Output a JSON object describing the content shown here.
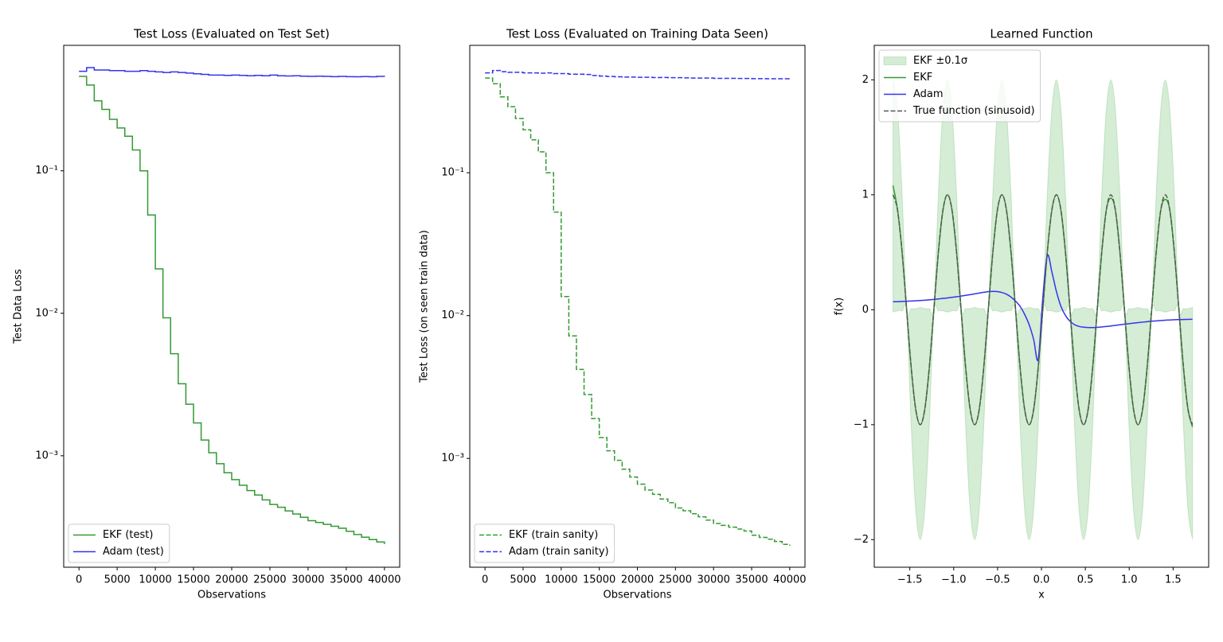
{
  "chart_data": [
    {
      "type": "line",
      "title": "Test Loss (Evaluated on Test Set)",
      "xlabel": "Observations",
      "ylabel": "Test Data Loss",
      "yscale": "log",
      "drawstyle": "steps-post",
      "legend": "lower left",
      "xlim": [
        -2000,
        42000
      ],
      "ylim": [
        0.000165,
        0.76
      ],
      "xticks": [
        0,
        5000,
        10000,
        15000,
        20000,
        25000,
        30000,
        35000,
        40000
      ],
      "yticks": [
        {
          "value": 0.1,
          "label": "10⁻¹"
        },
        {
          "value": 0.01,
          "label": "10⁻²"
        },
        {
          "value": 0.001,
          "label": "10⁻³"
        }
      ],
      "x": [
        0,
        1000,
        2000,
        3000,
        4000,
        5000,
        6000,
        7000,
        8000,
        9000,
        10000,
        11000,
        12000,
        13000,
        14000,
        15000,
        16000,
        17000,
        18000,
        19000,
        20000,
        21000,
        22000,
        23000,
        24000,
        25000,
        26000,
        27000,
        28000,
        29000,
        30000,
        31000,
        32000,
        33000,
        34000,
        35000,
        36000,
        37000,
        38000,
        39000,
        40000
      ],
      "series": [
        {
          "name": "EKF (test)",
          "color": "#339933",
          "style": "solid",
          "values": [
            0.46,
            0.4,
            0.31,
            0.27,
            0.23,
            0.2,
            0.175,
            0.14,
            0.1,
            0.049,
            0.0205,
            0.0093,
            0.0052,
            0.0032,
            0.0023,
            0.0017,
            0.00129,
            0.00105,
            0.00088,
            0.00076,
            0.00068,
            0.00062,
            0.00057,
            0.00053,
            0.00049,
            0.000455,
            0.000435,
            0.00041,
            0.00039,
            0.00037,
            0.00035,
            0.00034,
            0.00033,
            0.00032,
            0.00031,
            0.000295,
            0.00028,
            0.000268,
            0.000258,
            0.000248,
            0.00024
          ]
        },
        {
          "name": "Adam (test)",
          "color": "#3333ee",
          "style": "solid",
          "values": [
            0.5,
            0.53,
            0.51,
            0.51,
            0.505,
            0.505,
            0.5,
            0.5,
            0.505,
            0.5,
            0.495,
            0.49,
            0.495,
            0.49,
            0.485,
            0.48,
            0.475,
            0.47,
            0.47,
            0.468,
            0.47,
            0.468,
            0.465,
            0.468,
            0.465,
            0.47,
            0.465,
            0.463,
            0.465,
            0.462,
            0.46,
            0.462,
            0.46,
            0.458,
            0.46,
            0.458,
            0.457,
            0.459,
            0.457,
            0.46,
            0.457
          ]
        }
      ]
    },
    {
      "type": "line",
      "title": "Test Loss (Evaluated on Training Data Seen)",
      "xlabel": "Observations",
      "ylabel": "Test Loss (on seen train data)",
      "yscale": "log",
      "drawstyle": "steps-post",
      "legend": "lower left",
      "xlim": [
        -2000,
        42000
      ],
      "ylim": [
        0.000173,
        0.78
      ],
      "xticks": [
        0,
        5000,
        10000,
        15000,
        20000,
        25000,
        30000,
        35000,
        40000
      ],
      "yticks": [
        {
          "value": 0.1,
          "label": "10⁻¹"
        },
        {
          "value": 0.01,
          "label": "10⁻²"
        },
        {
          "value": 0.001,
          "label": "10⁻³"
        }
      ],
      "x": [
        0,
        1000,
        2000,
        3000,
        4000,
        5000,
        6000,
        7000,
        8000,
        9000,
        10000,
        11000,
        12000,
        13000,
        14000,
        15000,
        16000,
        17000,
        18000,
        19000,
        20000,
        21000,
        22000,
        23000,
        24000,
        25000,
        26000,
        27000,
        28000,
        29000,
        30000,
        31000,
        32000,
        33000,
        34000,
        35000,
        36000,
        37000,
        38000,
        39000,
        40000
      ],
      "series": [
        {
          "name": "EKF (train sanity)",
          "color": "#339933",
          "style": "dashed",
          "values": [
            0.46,
            0.42,
            0.34,
            0.29,
            0.24,
            0.2,
            0.17,
            0.14,
            0.1,
            0.053,
            0.0136,
            0.0072,
            0.0042,
            0.0028,
            0.0019,
            0.0014,
            0.00113,
            0.00097,
            0.00084,
            0.00074,
            0.00066,
            0.0006,
            0.00056,
            0.00052,
            0.00049,
            0.00045,
            0.00043,
            0.00041,
            0.00039,
            0.00037,
            0.00035,
            0.00034,
            0.00033,
            0.00032,
            0.00031,
            0.00029,
            0.00028,
            0.000272,
            0.000262,
            0.00025,
            0.000245
          ]
        },
        {
          "name": "Adam (train sanity)",
          "color": "#3333ee",
          "style": "dashed",
          "values": [
            0.5,
            0.52,
            0.51,
            0.505,
            0.505,
            0.5,
            0.5,
            0.498,
            0.5,
            0.495,
            0.495,
            0.49,
            0.49,
            0.488,
            0.48,
            0.475,
            0.472,
            0.47,
            0.468,
            0.468,
            0.466,
            0.466,
            0.464,
            0.465,
            0.463,
            0.463,
            0.462,
            0.46,
            0.46,
            0.46,
            0.458,
            0.458,
            0.458,
            0.457,
            0.457,
            0.456,
            0.456,
            0.455,
            0.455,
            0.455,
            0.455
          ]
        }
      ]
    },
    {
      "type": "line",
      "title": "Learned Function",
      "xlabel": "x",
      "ylabel": "f(x)",
      "yscale": "linear",
      "drawstyle": "smooth",
      "legend": "upper left",
      "xlim": [
        -1.905,
        1.905
      ],
      "ylim": [
        -2.24,
        2.3
      ],
      "xticks": [
        {
          "value": -1.5,
          "label": "−1.5"
        },
        {
          "value": -1.0,
          "label": "−1.0"
        },
        {
          "value": -0.5,
          "label": "−0.5"
        },
        {
          "value": 0,
          "label": "0.0"
        },
        0.5,
        {
          "value": 1.0,
          "label": "1.0"
        },
        1.5
      ],
      "yticks": [
        {
          "value": -2,
          "label": "−2"
        },
        {
          "value": -1,
          "label": "−1"
        },
        0,
        1,
        2
      ],
      "x": [
        -1.6912,
        -1.6395,
        -1.5878,
        -1.5361,
        -1.4844,
        -1.4327,
        -1.381,
        -1.3293,
        -1.2776,
        -1.2259,
        -1.1742,
        -1.1225,
        -1.0708,
        -1.0191,
        -0.9674,
        -0.9157,
        -0.864,
        -0.8123,
        -0.7606,
        -0.7089,
        -0.6572,
        -0.6055,
        -0.5538,
        -0.5021,
        -0.4504,
        -0.3987,
        -0.347,
        -0.2953,
        -0.2436,
        -0.1919,
        -0.1402,
        -0.0885,
        -0.0368,
        0.0149,
        0.0666,
        0.1183,
        0.17,
        0.2217,
        0.2734,
        0.3251,
        0.3768,
        0.4285,
        0.4802,
        0.5319,
        0.5836,
        0.6353,
        0.687,
        0.7387,
        0.7904,
        0.8421,
        0.8938,
        0.9455,
        0.9972,
        1.0489,
        1.1006,
        1.1523,
        1.204,
        1.2557,
        1.3074,
        1.3591,
        1.4108,
        1.4625,
        1.5142,
        1.5659,
        1.6176,
        1.6693,
        1.721
      ],
      "series": [
        {
          "name": "EKF ±0.1σ",
          "color": "#2ca02c",
          "alpha": 0.2,
          "upper": [
            2.0,
            1.74,
            1.01,
            0.04,
            0.01,
            0.01,
            0.02,
            0.01,
            0.01,
            0.04,
            1.01,
            1.74,
            2.0,
            1.74,
            1.01,
            0.04,
            0.01,
            0.01,
            0.02,
            0.01,
            0.01,
            0.04,
            1.01,
            1.74,
            2.0,
            1.74,
            1.01,
            0.04,
            0.01,
            0.01,
            0.02,
            0.01,
            0.01,
            0.04,
            1.01,
            1.74,
            2.0,
            1.74,
            1.01,
            0.04,
            0.01,
            0.01,
            0.02,
            0.01,
            0.01,
            0.04,
            1.01,
            1.74,
            2.0,
            1.74,
            1.01,
            0.04,
            0.01,
            0.01,
            0.02,
            0.01,
            0.01,
            0.04,
            1.01,
            1.74,
            2.0,
            1.74,
            1.01,
            0.04,
            0.01,
            0.01,
            0.02
          ],
          "lower": [
            -0.02,
            -0.01,
            -0.01,
            -0.04,
            -1.01,
            -1.74,
            -2.0,
            -1.74,
            -1.01,
            -0.04,
            -0.01,
            -0.01,
            -0.02,
            -0.01,
            -0.01,
            -0.04,
            -1.01,
            -1.74,
            -2.0,
            -1.74,
            -1.01,
            -0.04,
            -0.01,
            -0.01,
            -0.02,
            -0.01,
            -0.01,
            -0.04,
            -1.01,
            -1.74,
            -2.0,
            -1.74,
            -1.01,
            -0.04,
            -0.01,
            -0.01,
            -0.02,
            -0.01,
            -0.01,
            -0.04,
            -1.01,
            -1.74,
            -2.0,
            -1.74,
            -1.01,
            -0.04,
            -0.01,
            -0.01,
            -0.02,
            -0.01,
            -0.01,
            -0.04,
            -1.01,
            -1.74,
            -2.0,
            -1.74,
            -1.01,
            -0.04,
            -0.01,
            -0.01,
            -0.02,
            -0.01,
            -0.01,
            -0.04,
            -1.01,
            -1.74,
            -2.0
          ]
        },
        {
          "name": "EKF",
          "color": "#339933",
          "style": "solid",
          "values": [
            1.08,
            0.866,
            0.5,
            0,
            -0.5,
            -0.866,
            -1,
            -0.866,
            -0.5,
            0,
            0.5,
            0.866,
            1,
            0.866,
            0.5,
            0,
            -0.5,
            -0.866,
            -1,
            -0.866,
            -0.5,
            0,
            0.5,
            0.866,
            1,
            0.866,
            0.5,
            0,
            -0.5,
            -0.866,
            -1,
            -0.866,
            -0.5,
            0,
            0.5,
            0.866,
            1,
            0.866,
            0.5,
            0,
            -0.5,
            -0.866,
            -1,
            -0.866,
            -0.5,
            0,
            0.5,
            0.866,
            0.97,
            0.866,
            0.5,
            0,
            -0.5,
            -0.866,
            -1,
            -0.866,
            -0.5,
            0,
            0.5,
            0.866,
            0.96,
            0.866,
            0.5,
            0,
            -0.5,
            -0.866,
            -1.02
          ]
        },
        {
          "name": "Adam",
          "color": "#3333ee",
          "style": "solid",
          "values": [
            0.07,
            0.07,
            0.072,
            0.074,
            0.076,
            0.078,
            0.08,
            0.083,
            0.086,
            0.09,
            0.094,
            0.098,
            0.103,
            0.108,
            0.113,
            0.119,
            0.125,
            0.131,
            0.138,
            0.145,
            0.152,
            0.157,
            0.16,
            0.158,
            0.15,
            0.135,
            0.11,
            0.075,
            0.03,
            -0.04,
            -0.13,
            -0.26,
            -0.43,
            0.1,
            0.47,
            0.33,
            0.16,
            0.03,
            -0.05,
            -0.1,
            -0.13,
            -0.145,
            -0.152,
            -0.155,
            -0.155,
            -0.153,
            -0.15,
            -0.146,
            -0.141,
            -0.136,
            -0.131,
            -0.126,
            -0.121,
            -0.116,
            -0.112,
            -0.108,
            -0.104,
            -0.1,
            -0.097,
            -0.094,
            -0.091,
            -0.089,
            -0.087,
            -0.086,
            -0.085,
            -0.084,
            -0.083
          ]
        },
        {
          "name": "True function (sinusoid)",
          "color": "#555555",
          "style": "dashed",
          "values": [
            1,
            0.866,
            0.5,
            0,
            -0.5,
            -0.866,
            -1,
            -0.866,
            -0.5,
            0,
            0.5,
            0.866,
            1,
            0.866,
            0.5,
            0,
            -0.5,
            -0.866,
            -1,
            -0.866,
            -0.5,
            0,
            0.5,
            0.866,
            1,
            0.866,
            0.5,
            0,
            -0.5,
            -0.866,
            -1,
            -0.866,
            -0.5,
            0,
            0.5,
            0.866,
            1,
            0.866,
            0.5,
            0,
            -0.5,
            -0.866,
            -1,
            -0.866,
            -0.5,
            0,
            0.5,
            0.866,
            1,
            0.866,
            0.5,
            0,
            -0.5,
            -0.866,
            -1,
            -0.866,
            -0.5,
            0,
            0.5,
            0.866,
            1,
            0.866,
            0.5,
            0,
            -0.5,
            -0.866,
            -1
          ]
        }
      ]
    }
  ]
}
